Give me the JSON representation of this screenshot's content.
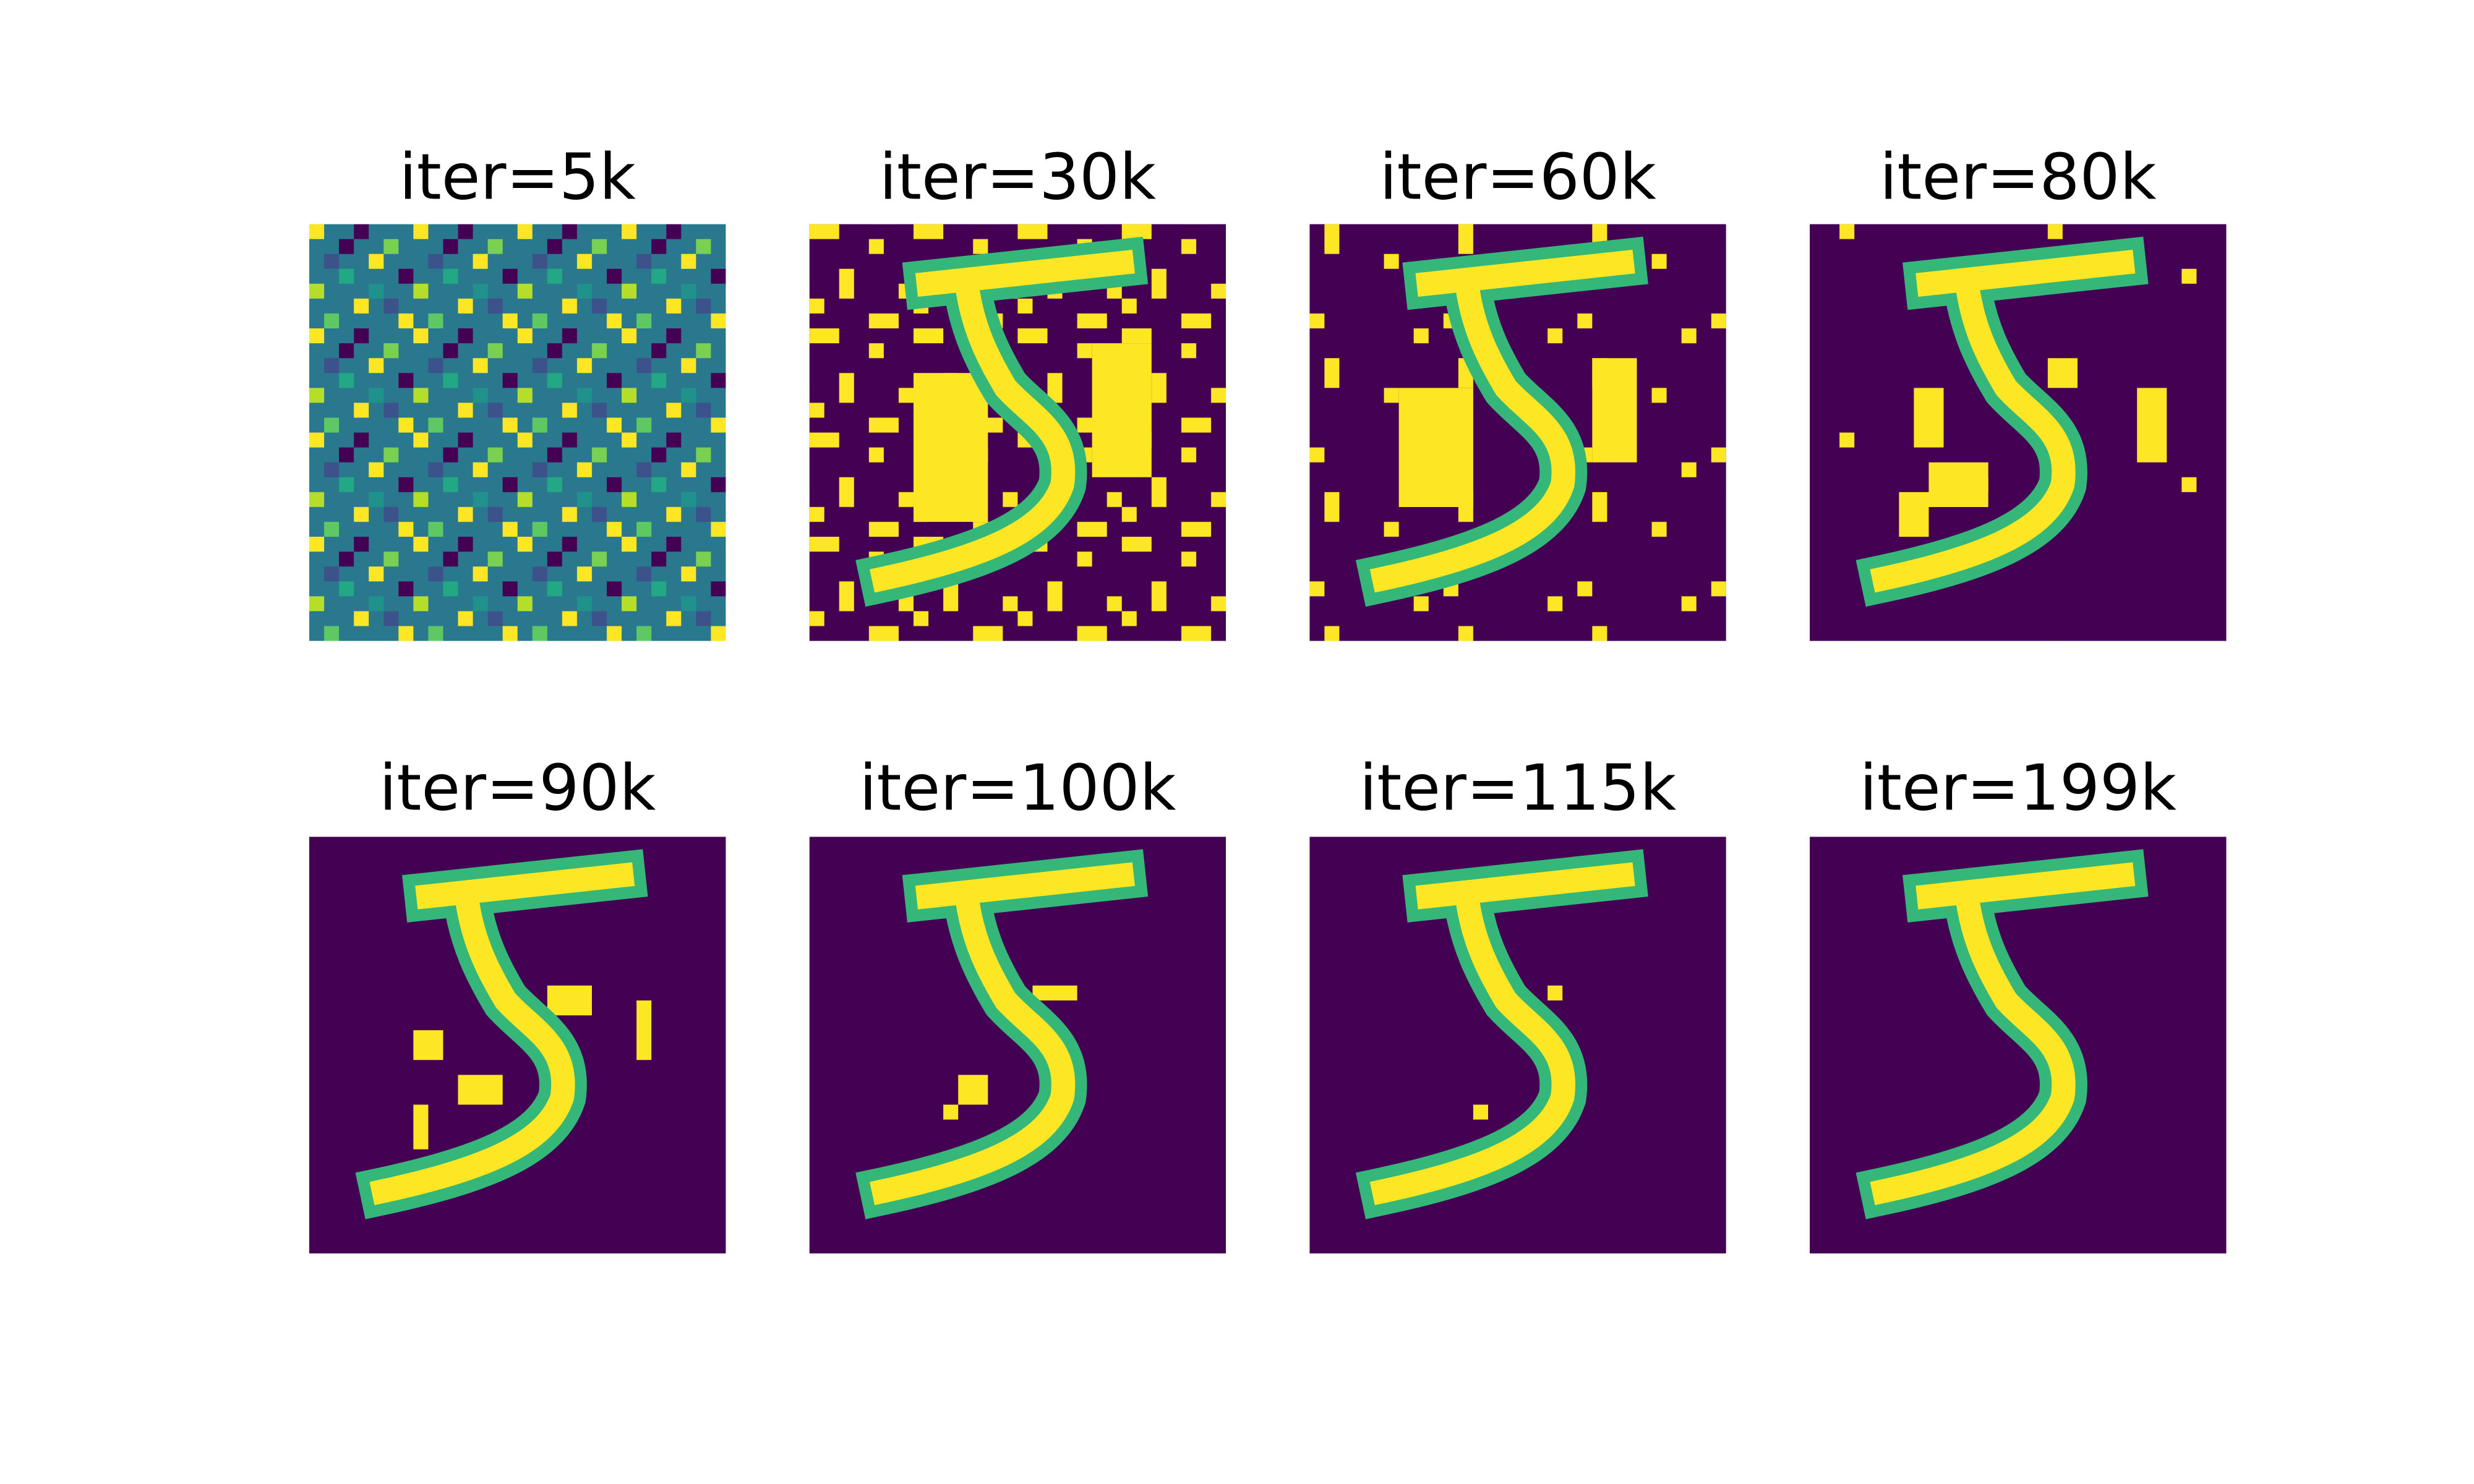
{
  "panels": [
    {
      "title": "iter=5k"
    },
    {
      "title": "iter=30k"
    },
    {
      "title": "iter=60k"
    },
    {
      "title": "iter=80k"
    },
    {
      "title": "iter=90k"
    },
    {
      "title": "iter=100k"
    },
    {
      "title": "iter=115k"
    },
    {
      "title": "iter=199k"
    }
  ]
}
